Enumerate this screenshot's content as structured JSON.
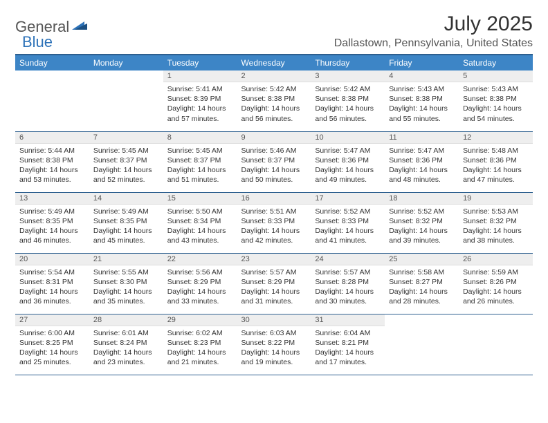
{
  "logo": {
    "general": "General",
    "blue": "Blue"
  },
  "title": "July 2025",
  "location": "Dallastown, Pennsylvania, United States",
  "colors": {
    "header_bg": "#3d85c6",
    "header_border": "#2d5f8f",
    "daynum_bg": "#eeeeee",
    "text": "#333333",
    "logo_blue": "#2d72b8"
  },
  "weekdays": [
    "Sunday",
    "Monday",
    "Tuesday",
    "Wednesday",
    "Thursday",
    "Friday",
    "Saturday"
  ],
  "weeks": [
    [
      null,
      null,
      {
        "n": "1",
        "sr": "5:41 AM",
        "ss": "8:39 PM",
        "dlA": "Daylight: 14 hours",
        "dlB": "and 57 minutes."
      },
      {
        "n": "2",
        "sr": "5:42 AM",
        "ss": "8:38 PM",
        "dlA": "Daylight: 14 hours",
        "dlB": "and 56 minutes."
      },
      {
        "n": "3",
        "sr": "5:42 AM",
        "ss": "8:38 PM",
        "dlA": "Daylight: 14 hours",
        "dlB": "and 56 minutes."
      },
      {
        "n": "4",
        "sr": "5:43 AM",
        "ss": "8:38 PM",
        "dlA": "Daylight: 14 hours",
        "dlB": "and 55 minutes."
      },
      {
        "n": "5",
        "sr": "5:43 AM",
        "ss": "8:38 PM",
        "dlA": "Daylight: 14 hours",
        "dlB": "and 54 minutes."
      }
    ],
    [
      {
        "n": "6",
        "sr": "5:44 AM",
        "ss": "8:38 PM",
        "dlA": "Daylight: 14 hours",
        "dlB": "and 53 minutes."
      },
      {
        "n": "7",
        "sr": "5:45 AM",
        "ss": "8:37 PM",
        "dlA": "Daylight: 14 hours",
        "dlB": "and 52 minutes."
      },
      {
        "n": "8",
        "sr": "5:45 AM",
        "ss": "8:37 PM",
        "dlA": "Daylight: 14 hours",
        "dlB": "and 51 minutes."
      },
      {
        "n": "9",
        "sr": "5:46 AM",
        "ss": "8:37 PM",
        "dlA": "Daylight: 14 hours",
        "dlB": "and 50 minutes."
      },
      {
        "n": "10",
        "sr": "5:47 AM",
        "ss": "8:36 PM",
        "dlA": "Daylight: 14 hours",
        "dlB": "and 49 minutes."
      },
      {
        "n": "11",
        "sr": "5:47 AM",
        "ss": "8:36 PM",
        "dlA": "Daylight: 14 hours",
        "dlB": "and 48 minutes."
      },
      {
        "n": "12",
        "sr": "5:48 AM",
        "ss": "8:36 PM",
        "dlA": "Daylight: 14 hours",
        "dlB": "and 47 minutes."
      }
    ],
    [
      {
        "n": "13",
        "sr": "5:49 AM",
        "ss": "8:35 PM",
        "dlA": "Daylight: 14 hours",
        "dlB": "and 46 minutes."
      },
      {
        "n": "14",
        "sr": "5:49 AM",
        "ss": "8:35 PM",
        "dlA": "Daylight: 14 hours",
        "dlB": "and 45 minutes."
      },
      {
        "n": "15",
        "sr": "5:50 AM",
        "ss": "8:34 PM",
        "dlA": "Daylight: 14 hours",
        "dlB": "and 43 minutes."
      },
      {
        "n": "16",
        "sr": "5:51 AM",
        "ss": "8:33 PM",
        "dlA": "Daylight: 14 hours",
        "dlB": "and 42 minutes."
      },
      {
        "n": "17",
        "sr": "5:52 AM",
        "ss": "8:33 PM",
        "dlA": "Daylight: 14 hours",
        "dlB": "and 41 minutes."
      },
      {
        "n": "18",
        "sr": "5:52 AM",
        "ss": "8:32 PM",
        "dlA": "Daylight: 14 hours",
        "dlB": "and 39 minutes."
      },
      {
        "n": "19",
        "sr": "5:53 AM",
        "ss": "8:32 PM",
        "dlA": "Daylight: 14 hours",
        "dlB": "and 38 minutes."
      }
    ],
    [
      {
        "n": "20",
        "sr": "5:54 AM",
        "ss": "8:31 PM",
        "dlA": "Daylight: 14 hours",
        "dlB": "and 36 minutes."
      },
      {
        "n": "21",
        "sr": "5:55 AM",
        "ss": "8:30 PM",
        "dlA": "Daylight: 14 hours",
        "dlB": "and 35 minutes."
      },
      {
        "n": "22",
        "sr": "5:56 AM",
        "ss": "8:29 PM",
        "dlA": "Daylight: 14 hours",
        "dlB": "and 33 minutes."
      },
      {
        "n": "23",
        "sr": "5:57 AM",
        "ss": "8:29 PM",
        "dlA": "Daylight: 14 hours",
        "dlB": "and 31 minutes."
      },
      {
        "n": "24",
        "sr": "5:57 AM",
        "ss": "8:28 PM",
        "dlA": "Daylight: 14 hours",
        "dlB": "and 30 minutes."
      },
      {
        "n": "25",
        "sr": "5:58 AM",
        "ss": "8:27 PM",
        "dlA": "Daylight: 14 hours",
        "dlB": "and 28 minutes."
      },
      {
        "n": "26",
        "sr": "5:59 AM",
        "ss": "8:26 PM",
        "dlA": "Daylight: 14 hours",
        "dlB": "and 26 minutes."
      }
    ],
    [
      {
        "n": "27",
        "sr": "6:00 AM",
        "ss": "8:25 PM",
        "dlA": "Daylight: 14 hours",
        "dlB": "and 25 minutes."
      },
      {
        "n": "28",
        "sr": "6:01 AM",
        "ss": "8:24 PM",
        "dlA": "Daylight: 14 hours",
        "dlB": "and 23 minutes."
      },
      {
        "n": "29",
        "sr": "6:02 AM",
        "ss": "8:23 PM",
        "dlA": "Daylight: 14 hours",
        "dlB": "and 21 minutes."
      },
      {
        "n": "30",
        "sr": "6:03 AM",
        "ss": "8:22 PM",
        "dlA": "Daylight: 14 hours",
        "dlB": "and 19 minutes."
      },
      {
        "n": "31",
        "sr": "6:04 AM",
        "ss": "8:21 PM",
        "dlA": "Daylight: 14 hours",
        "dlB": "and 17 minutes."
      },
      null,
      null
    ]
  ],
  "labels": {
    "sunrise": "Sunrise: ",
    "sunset": "Sunset: "
  }
}
